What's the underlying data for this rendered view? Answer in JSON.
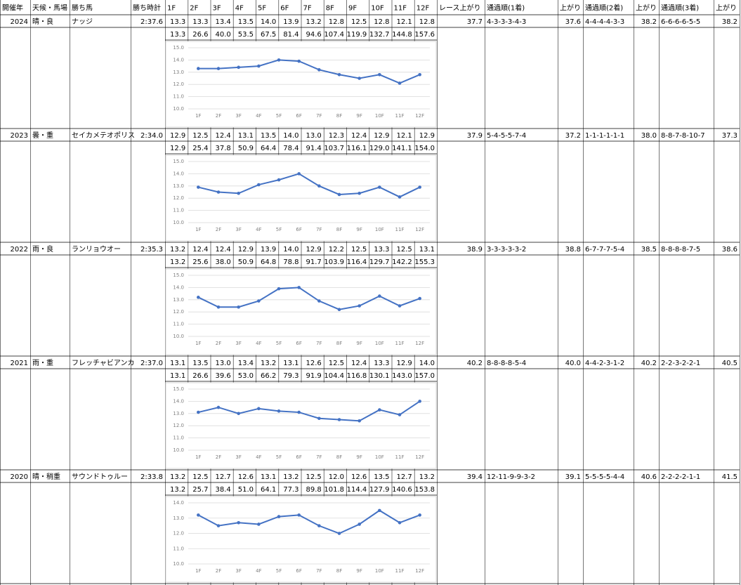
{
  "table": {
    "header": [
      "開催年",
      "天候・馬場",
      "勝ち馬",
      "勝ち時計",
      "1F",
      "2F",
      "3F",
      "4F",
      "5F",
      "6F",
      "7F",
      "8F",
      "9F",
      "10F",
      "11F",
      "12F",
      "レース上がり",
      "通過順(1着)",
      "上がり",
      "通過順(2着)",
      "上がり",
      "通過順(3着)",
      "上がり"
    ],
    "rows": [
      {
        "year": "2024",
        "condition": "晴・良",
        "winner": "ナッジ",
        "time": "2:37.6",
        "laps": [
          "13.3",
          "13.3",
          "13.4",
          "13.5",
          "14.0",
          "13.9",
          "13.2",
          "12.8",
          "12.5",
          "12.8",
          "12.1",
          "12.8"
        ],
        "cumulative": [
          "13.3",
          "26.6",
          "40.0",
          "53.5",
          "67.5",
          "81.4",
          "94.6",
          "107.4",
          "119.9",
          "132.7",
          "144.8",
          "157.6"
        ],
        "race_last3f": "37.7",
        "pass_1st": "4-3-3-3-4-3",
        "last3f_1st": "37.6",
        "pass_2nd": "4-4-4-4-3-3",
        "last3f_2nd": "38.2",
        "pass_3rd": "6-6-6-6-5-5",
        "last3f_3rd": "38.2"
      },
      {
        "year": "2023",
        "condition": "曇・重",
        "winner": "セイカメテオポリス",
        "time": "2:34.0",
        "laps": [
          "12.9",
          "12.5",
          "12.4",
          "13.1",
          "13.5",
          "14.0",
          "13.0",
          "12.3",
          "12.4",
          "12.9",
          "12.1",
          "12.9"
        ],
        "cumulative": [
          "12.9",
          "25.4",
          "37.8",
          "50.9",
          "64.4",
          "78.4",
          "91.4",
          "103.7",
          "116.1",
          "129.0",
          "141.1",
          "154.0"
        ],
        "race_last3f": "37.9",
        "pass_1st": "5-4-5-5-7-4",
        "last3f_1st": "37.2",
        "pass_2nd": "1-1-1-1-1-1",
        "last3f_2nd": "38.0",
        "pass_3rd": "8-8-7-8-10-7",
        "last3f_3rd": "37.3"
      },
      {
        "year": "2022",
        "condition": "雨・良",
        "winner": "ランリョウオー",
        "time": "2:35.3",
        "laps": [
          "13.2",
          "12.4",
          "12.4",
          "12.9",
          "13.9",
          "14.0",
          "12.9",
          "12.2",
          "12.5",
          "13.3",
          "12.5",
          "13.1"
        ],
        "cumulative": [
          "13.2",
          "25.6",
          "38.0",
          "50.9",
          "64.8",
          "78.8",
          "91.7",
          "103.9",
          "116.4",
          "129.7",
          "142.2",
          "155.3"
        ],
        "race_last3f": "38.9",
        "pass_1st": "3-3-3-3-3-2",
        "last3f_1st": "38.8",
        "pass_2nd": "6-7-7-7-5-4",
        "last3f_2nd": "38.5",
        "pass_3rd": "8-8-8-8-7-5",
        "last3f_3rd": "38.6"
      },
      {
        "year": "2021",
        "condition": "雨・重",
        "winner": "フレッチャビアンカ",
        "time": "2:37.0",
        "laps": [
          "13.1",
          "13.5",
          "13.0",
          "13.4",
          "13.2",
          "13.1",
          "12.6",
          "12.5",
          "12.4",
          "13.3",
          "12.9",
          "14.0"
        ],
        "cumulative": [
          "13.1",
          "26.6",
          "39.6",
          "53.0",
          "66.2",
          "79.3",
          "91.9",
          "104.4",
          "116.8",
          "130.1",
          "143.0",
          "157.0"
        ],
        "race_last3f": "40.2",
        "pass_1st": "8-8-8-8-5-4",
        "last3f_1st": "40.0",
        "pass_2nd": "4-4-2-3-1-2",
        "last3f_2nd": "40.2",
        "pass_3rd": "2-2-3-2-2-1",
        "last3f_3rd": "40.5"
      },
      {
        "year": "2020",
        "condition": "晴・稍重",
        "winner": "サウンドトゥルー",
        "time": "2:33.8",
        "laps": [
          "13.2",
          "12.5",
          "12.7",
          "12.6",
          "13.1",
          "13.2",
          "12.5",
          "12.0",
          "12.6",
          "13.5",
          "12.7",
          "13.2"
        ],
        "cumulative": [
          "13.2",
          "25.7",
          "38.4",
          "51.0",
          "64.1",
          "77.3",
          "89.8",
          "101.8",
          "114.4",
          "127.9",
          "140.6",
          "153.8"
        ],
        "race_last3f": "39.4",
        "pass_1st": "12-11-9-9-3-2",
        "last3f_1st": "39.1",
        "pass_2nd": "5-5-5-5-4-4",
        "last3f_2nd": "40.6",
        "pass_3rd": "2-2-2-2-1-1",
        "last3f_3rd": "41.5"
      }
    ]
  },
  "chart_data": [
    {
      "type": "line",
      "categories": [
        "1F",
        "2F",
        "3F",
        "4F",
        "5F",
        "6F",
        "7F",
        "8F",
        "9F",
        "10F",
        "11F",
        "12F"
      ],
      "values": [
        13.3,
        13.3,
        13.4,
        13.5,
        14.0,
        13.9,
        13.2,
        12.8,
        12.5,
        12.8,
        12.1,
        12.8
      ],
      "color": "#4472c4",
      "ylim": [
        10,
        15
      ],
      "yticks": [
        {
          "value": 10,
          "label": "10.0"
        },
        {
          "value": 11,
          "label": "11.0"
        },
        {
          "value": 12,
          "label": "12.0"
        },
        {
          "value": 13,
          "label": "13.0"
        },
        {
          "value": 14,
          "label": "14.0"
        },
        {
          "value": 15,
          "label": "15.0"
        }
      ],
      "grid": true
    },
    {
      "type": "line",
      "categories": [
        "1F",
        "2F",
        "3F",
        "4F",
        "5F",
        "6F",
        "7F",
        "8F",
        "9F",
        "10F",
        "11F",
        "12F"
      ],
      "values": [
        12.9,
        12.5,
        12.4,
        13.1,
        13.5,
        14.0,
        13.0,
        12.3,
        12.4,
        12.9,
        12.1,
        12.9
      ],
      "color": "#4472c4",
      "ylim": [
        10,
        15
      ],
      "yticks": [
        {
          "value": 10,
          "label": "10.0"
        },
        {
          "value": 11,
          "label": "11.0"
        },
        {
          "value": 12,
          "label": "12.0"
        },
        {
          "value": 13,
          "label": "13.0"
        },
        {
          "value": 14,
          "label": "14.0"
        },
        {
          "value": 15,
          "label": "15.0"
        }
      ],
      "grid": true
    },
    {
      "type": "line",
      "categories": [
        "1F",
        "2F",
        "3F",
        "4F",
        "5F",
        "6F",
        "7F",
        "8F",
        "9F",
        "10F",
        "11F",
        "12F"
      ],
      "values": [
        13.2,
        12.4,
        12.4,
        12.9,
        13.9,
        14.0,
        12.9,
        12.2,
        12.5,
        13.3,
        12.5,
        13.1
      ],
      "color": "#4472c4",
      "ylim": [
        10,
        15
      ],
      "yticks": [
        {
          "value": 10,
          "label": "10.0"
        },
        {
          "value": 11,
          "label": "11.0"
        },
        {
          "value": 12,
          "label": "12.0"
        },
        {
          "value": 13,
          "label": "13.0"
        },
        {
          "value": 14,
          "label": "14.0"
        },
        {
          "value": 15,
          "label": "15.0"
        }
      ],
      "grid": true
    },
    {
      "type": "line",
      "categories": [
        "1F",
        "2F",
        "3F",
        "4F",
        "5F",
        "6F",
        "7F",
        "8F",
        "9F",
        "10F",
        "11F",
        "12F"
      ],
      "values": [
        13.1,
        13.5,
        13.0,
        13.4,
        13.2,
        13.1,
        12.6,
        12.5,
        12.4,
        13.3,
        12.9,
        14.0
      ],
      "color": "#4472c4",
      "ylim": [
        10,
        15
      ],
      "yticks": [
        {
          "value": 10,
          "label": "10.0"
        },
        {
          "value": 11,
          "label": "11.0"
        },
        {
          "value": 12,
          "label": "12.0"
        },
        {
          "value": 13,
          "label": "13.0"
        },
        {
          "value": 14,
          "label": "14.0"
        },
        {
          "value": 15,
          "label": "15.0"
        }
      ],
      "grid": true
    },
    {
      "type": "line",
      "categories": [
        "1F",
        "2F",
        "3F",
        "4F",
        "5F",
        "6F",
        "7F",
        "8F",
        "9F",
        "10F",
        "11F",
        "12F"
      ],
      "values": [
        13.2,
        12.5,
        12.7,
        12.6,
        13.1,
        13.2,
        12.5,
        12.0,
        12.6,
        13.5,
        12.7,
        13.2
      ],
      "color": "#4472c4",
      "ylim": [
        10,
        14
      ],
      "yticks": [
        {
          "value": 10,
          "label": "10.0"
        },
        {
          "value": 11,
          "label": "11.0"
        },
        {
          "value": 12,
          "label": "12.0"
        },
        {
          "value": 13,
          "label": "13.0"
        },
        {
          "value": 14,
          "label": "14.0"
        }
      ],
      "grid": true
    }
  ]
}
